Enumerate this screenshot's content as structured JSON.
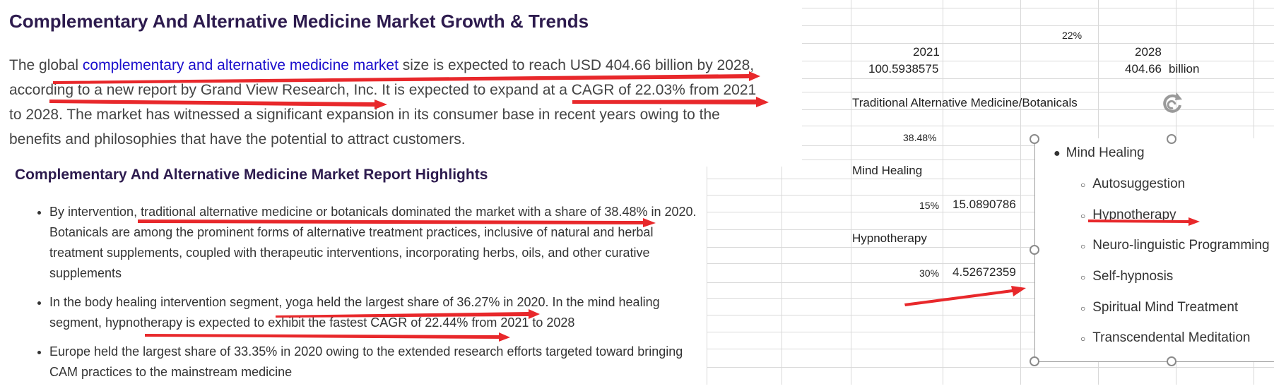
{
  "article": {
    "title": "Complementary And Alternative Medicine Market Growth & Trends",
    "para_1": "The global ",
    "para_link": "complementary and alternative medicine market",
    "para_2": " size is expected to reach USD 404.66 billion by 2028, according to a new report by Grand View Research, Inc. It is expected to expand at a CAGR of 22.03% from 2021 to 2028. The market has witnessed a significant expansion in its consumer base in recent years owing to the benefits and philosophies that have the potential to attract customers.",
    "highlights_title": "Complementary And Alternative Medicine Market Report Highlights",
    "bullets": [
      "By intervention, traditional alternative medicine or botanicals dominated the market with a share of 38.48% in 2020. Botanicals are among the prominent forms of alternative treatment practices, inclusive of natural and herbal treatment supplements, coupled with therapeutic interventions, incorporating herbs, oils, and other curative supplements",
      "In the body healing intervention segment, yoga held the largest share of 36.27% in 2020. In the mind healing segment, hypnotherapy is expected to exhibit the fastest CAGR of 22.44% from 2021 to 2028",
      "Europe held the largest share of 33.35% in 2020 owing to the extended research efforts targeted toward bringing CAM practices to the mainstream medicine"
    ]
  },
  "sheet": {
    "cagr": "22%",
    "year_start": "2021",
    "value_start": "100.5938575",
    "year_end": "2028",
    "value_end": "404.66",
    "unit": "billion",
    "botanicals_label": "Traditional Alternative Medicine/Botanicals",
    "botanicals_share": "38.48%",
    "mind_label": "Mind Healing",
    "mind_pct": "15%",
    "mind_value": "15.0890786",
    "hypno_label": "Hypnotherapy",
    "hypno_pct": "30%",
    "hypno_value": "4.52672359"
  },
  "textbox": {
    "items": [
      "Mind Healing",
      "Autosuggestion",
      "Hypnotherapy",
      "Neuro-linguistic Programming",
      "Self-hypnosis",
      "Spiritual Mind Treatment",
      "Transcendental Meditation"
    ]
  },
  "colors": {
    "title": "#2d1b4e",
    "link": "#1a0dcc",
    "annotation": "#e8282b"
  }
}
